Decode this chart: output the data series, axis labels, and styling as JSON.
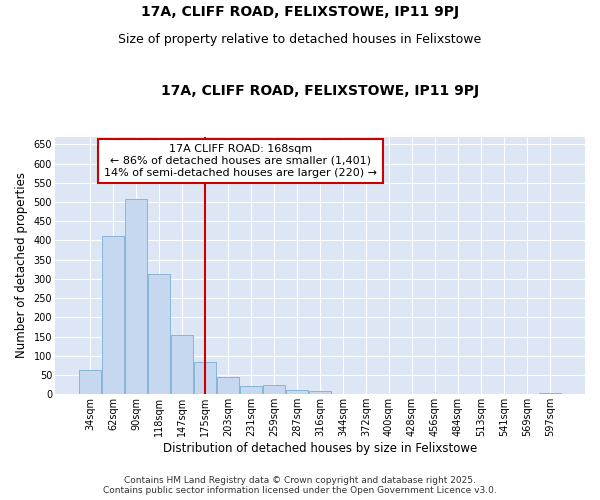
{
  "title": "17A, CLIFF ROAD, FELIXSTOWE, IP11 9PJ",
  "subtitle": "Size of property relative to detached houses in Felixstowe",
  "xlabel": "Distribution of detached houses by size in Felixstowe",
  "ylabel": "Number of detached properties",
  "categories": [
    "34sqm",
    "62sqm",
    "90sqm",
    "118sqm",
    "147sqm",
    "175sqm",
    "203sqm",
    "231sqm",
    "259sqm",
    "287sqm",
    "316sqm",
    "344sqm",
    "372sqm",
    "400sqm",
    "428sqm",
    "456sqm",
    "484sqm",
    "513sqm",
    "541sqm",
    "569sqm",
    "597sqm"
  ],
  "values": [
    62,
    412,
    507,
    313,
    155,
    83,
    46,
    22,
    24,
    12,
    8,
    0,
    0,
    0,
    0,
    0,
    0,
    0,
    0,
    0,
    4
  ],
  "bar_color": "#c5d8f0",
  "bar_edge_color": "#7bafd4",
  "vline_index": 5,
  "vline_color": "#cc0000",
  "annotation_line1": "17A CLIFF ROAD: 168sqm",
  "annotation_line2": "← 86% of detached houses are smaller (1,401)",
  "annotation_line3": "14% of semi-detached houses are larger (220) →",
  "annotation_box_edge": "#cc0000",
  "ylim": [
    0,
    670
  ],
  "yticks": [
    0,
    50,
    100,
    150,
    200,
    250,
    300,
    350,
    400,
    450,
    500,
    550,
    600,
    650
  ],
  "footer": "Contains HM Land Registry data © Crown copyright and database right 2025.\nContains public sector information licensed under the Open Government Licence v3.0.",
  "fig_bg": "#ffffff",
  "plot_bg": "#dce6f5",
  "grid_color": "#ffffff",
  "title_fontsize": 10,
  "subtitle_fontsize": 9,
  "label_fontsize": 8.5,
  "tick_fontsize": 7,
  "ann_fontsize": 8,
  "footer_fontsize": 6.5
}
